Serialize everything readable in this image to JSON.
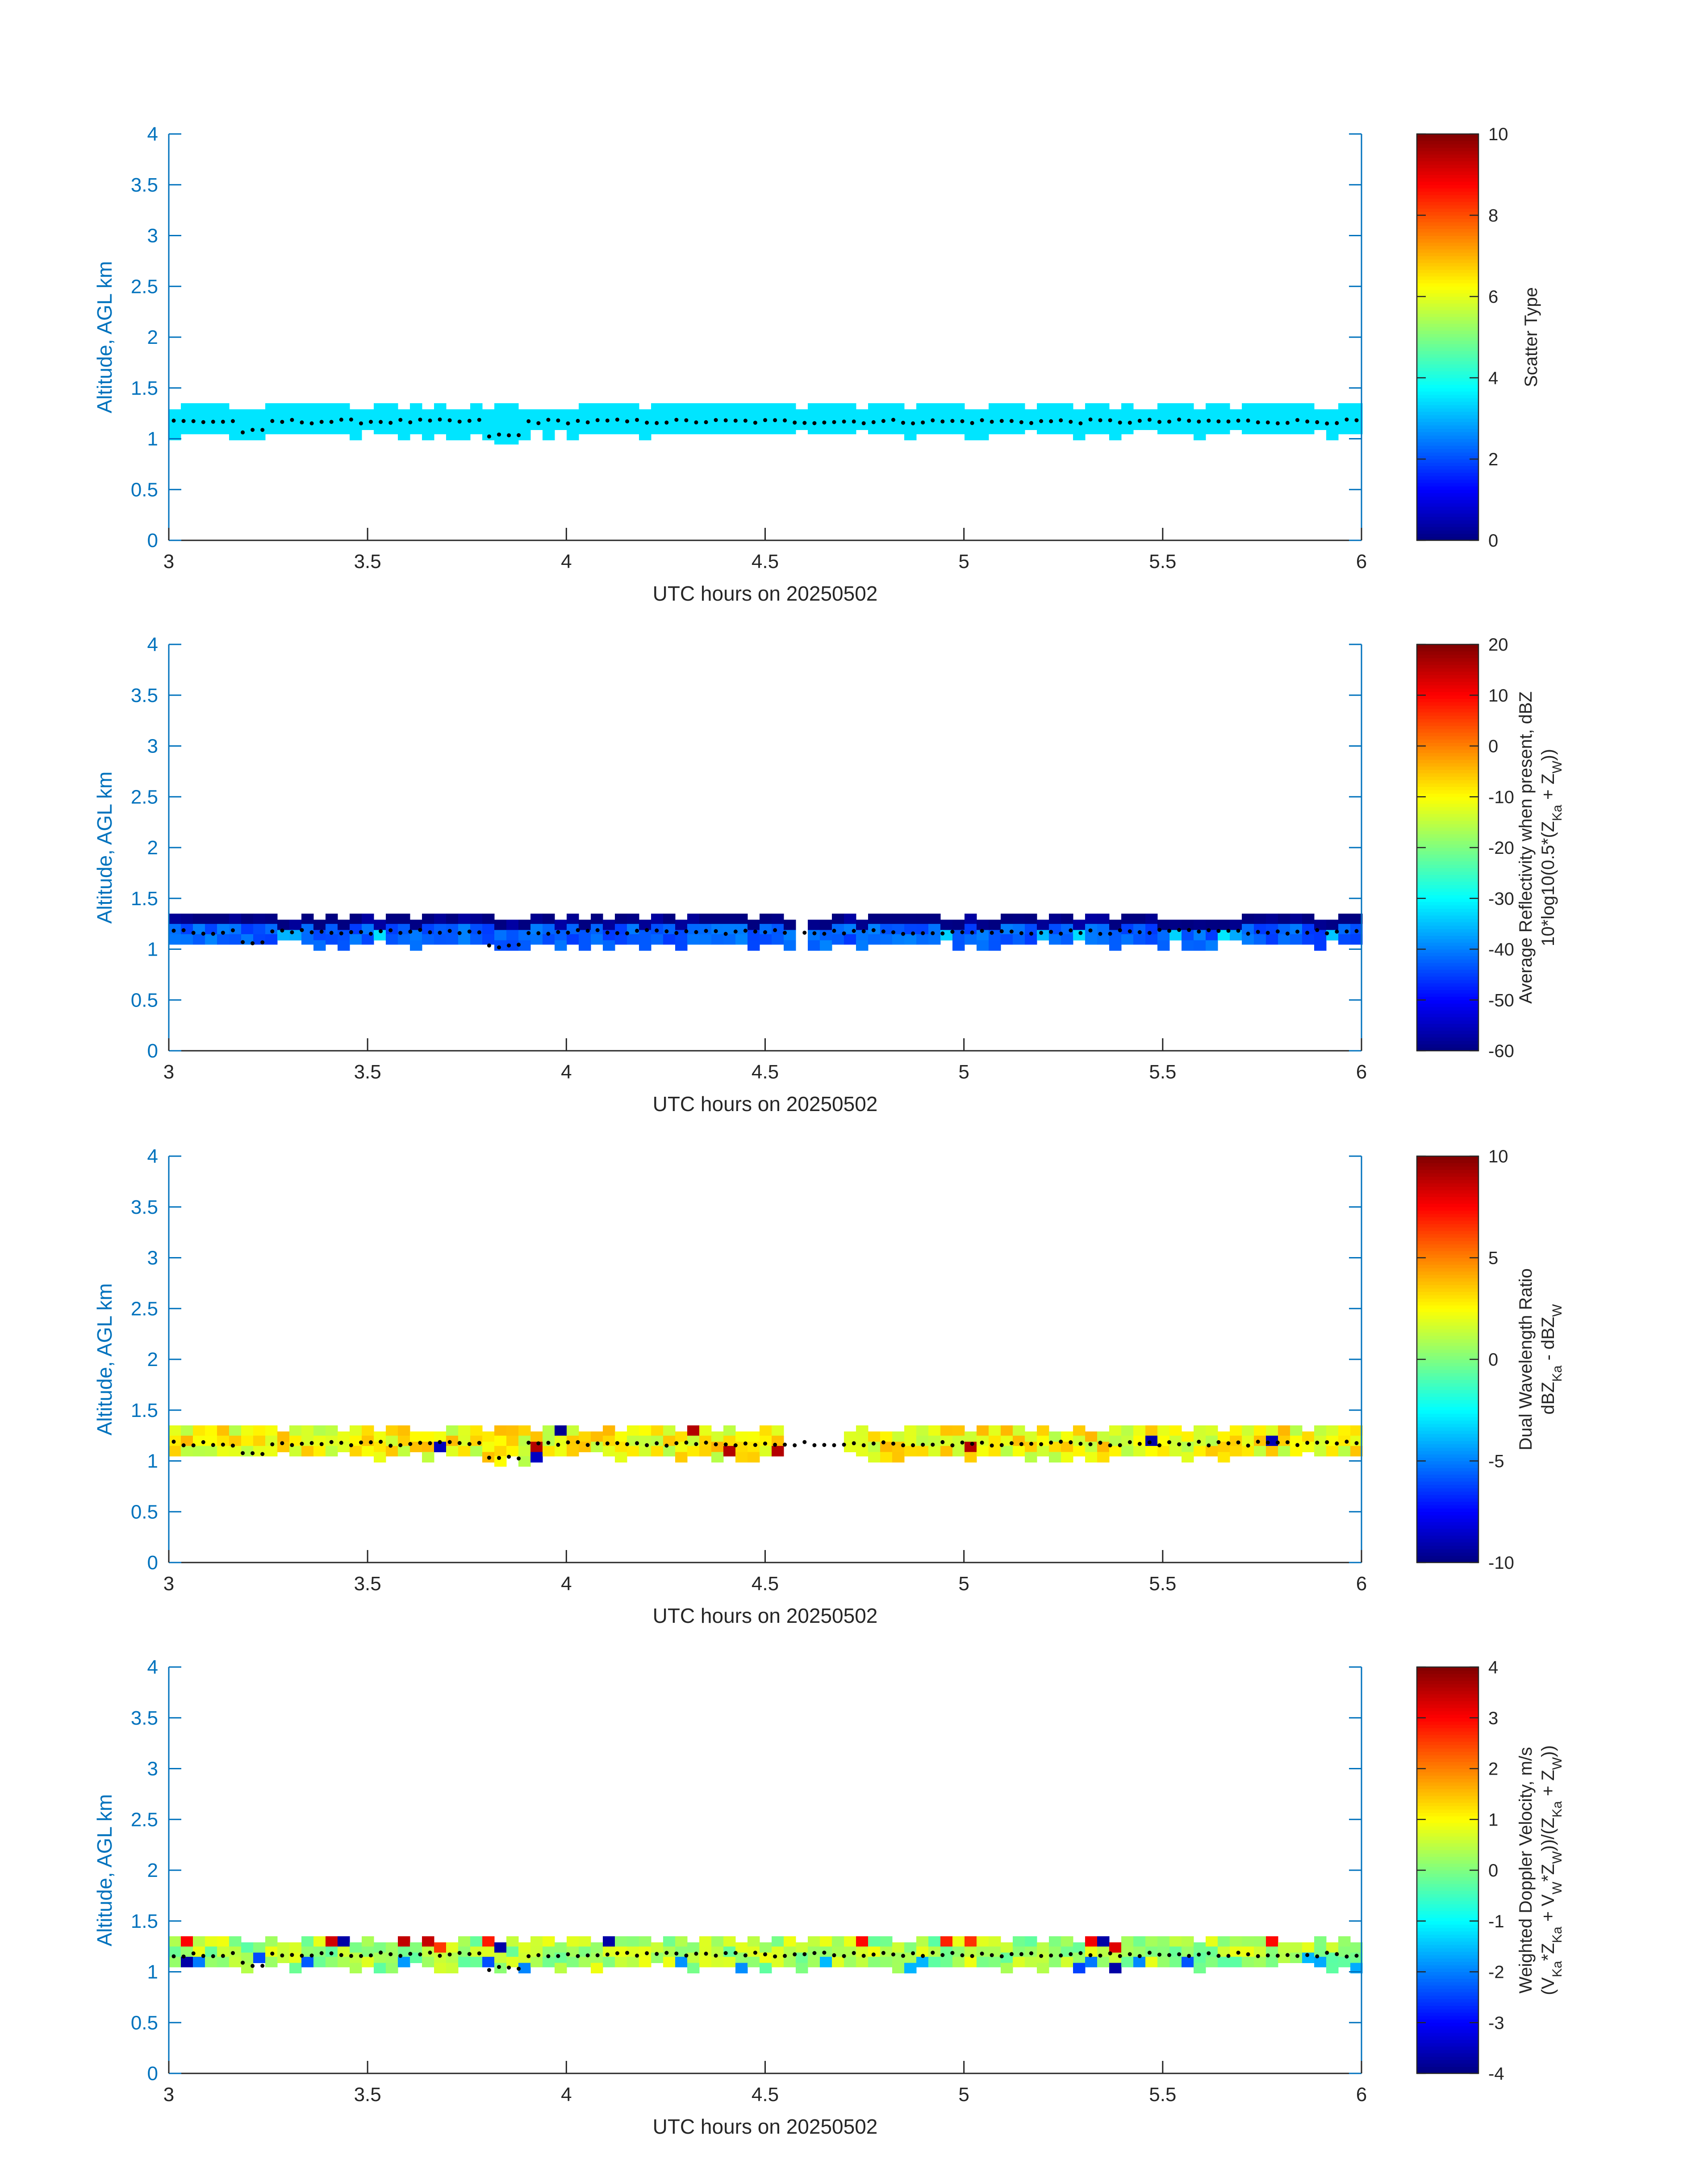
{
  "chart_data": [
    {
      "type": "heatmap",
      "xlabel": "UTC hours on 20250502",
      "ylabel": "Altitude, AGL km",
      "xlim": [
        3,
        6
      ],
      "ylim": [
        0,
        4
      ],
      "xticks": [
        "3",
        "3.5",
        "4",
        "4.5",
        "5",
        "5.5",
        "6"
      ],
      "yticks": [
        "0",
        "0.5",
        "1",
        "1.5",
        "2",
        "2.5",
        "3",
        "3.5",
        "4"
      ],
      "colorbar": {
        "label_lines": [
          "Scatter Type"
        ],
        "range": [
          0,
          10
        ],
        "ticks": [
          "0",
          "2",
          "4",
          "6",
          "8",
          "10"
        ]
      },
      "layer": {
        "x_range": [
          3,
          6
        ],
        "bottom_km": 1.0,
        "top_km": 1.35,
        "typical_value": 3.5
      },
      "dotted_line_km": 1.17
    },
    {
      "type": "heatmap",
      "xlabel": "UTC hours on 20250502",
      "ylabel": "Altitude, AGL km",
      "xlim": [
        3,
        6
      ],
      "ylim": [
        0,
        4
      ],
      "xticks": [
        "3",
        "3.5",
        "4",
        "4.5",
        "5",
        "5.5",
        "6"
      ],
      "yticks": [
        "0",
        "0.5",
        "1",
        "1.5",
        "2",
        "2.5",
        "3",
        "3.5",
        "4"
      ],
      "colorbar": {
        "label_lines": [
          "Average Reflectivity when present, dBZ",
          "10*log10(0.5*(Z",
          "Ka",
          " + Z",
          "W",
          "))"
        ],
        "range": [
          -60,
          20
        ],
        "ticks": [
          "-60",
          "-50",
          "-40",
          "-30",
          "-20",
          "-10",
          "0",
          "10",
          "20"
        ]
      },
      "layer": {
        "x_range": [
          3,
          6
        ],
        "bottom_km": 1.0,
        "top_km": 1.35,
        "typical_value": -50,
        "gap_x": [
          4.56,
          4.59
        ]
      },
      "dotted_line_km": 1.17
    },
    {
      "type": "heatmap",
      "xlabel": "UTC hours on 20250502",
      "ylabel": "Altitude, AGL km",
      "xlim": [
        3,
        6
      ],
      "ylim": [
        0,
        4
      ],
      "xticks": [
        "3",
        "3.5",
        "4",
        "4.5",
        "5",
        "5.5",
        "6"
      ],
      "yticks": [
        "0",
        "0.5",
        "1",
        "1.5",
        "2",
        "2.5",
        "3",
        "3.5",
        "4"
      ],
      "colorbar": {
        "label_lines": [
          "Dual Wavelength Ratio",
          "dBZ",
          "Ka",
          " - dBZ",
          "W"
        ],
        "range": [
          -10,
          10
        ],
        "ticks": [
          "-10",
          "-5",
          "0",
          "5",
          "10"
        ]
      },
      "layer": {
        "x_range": [
          3,
          6
        ],
        "bottom_km": 1.0,
        "top_km": 1.35,
        "typical_value": 2.5,
        "gap_x": [
          4.52,
          4.68
        ]
      },
      "dotted_line_km": 1.17
    },
    {
      "type": "heatmap",
      "xlabel": "UTC hours on 20250502",
      "ylabel": "Altitude, AGL km",
      "xlim": [
        3,
        6
      ],
      "ylim": [
        0,
        4
      ],
      "xticks": [
        "3",
        "3.5",
        "4",
        "4.5",
        "5",
        "5.5",
        "6"
      ],
      "yticks": [
        "0",
        "0.5",
        "1",
        "1.5",
        "2",
        "2.5",
        "3",
        "3.5",
        "4"
      ],
      "colorbar": {
        "label_lines": [
          "Weighted Doppler Velocity, m/s",
          "(V",
          "Ka",
          "*Z",
          "Ka",
          " + V",
          "W",
          "*Z",
          "W",
          "))/(Z",
          "Ka",
          " + Z",
          "W",
          "))"
        ],
        "range": [
          -4,
          4
        ],
        "ticks": [
          "-4",
          "-3",
          "-2",
          "-1",
          "0",
          "1",
          "2",
          "3",
          "4"
        ]
      },
      "layer": {
        "x_range": [
          3,
          6
        ],
        "bottom_km": 1.0,
        "top_km": 1.35,
        "typical_value": 0.3
      },
      "dotted_line_km": 1.17
    }
  ]
}
